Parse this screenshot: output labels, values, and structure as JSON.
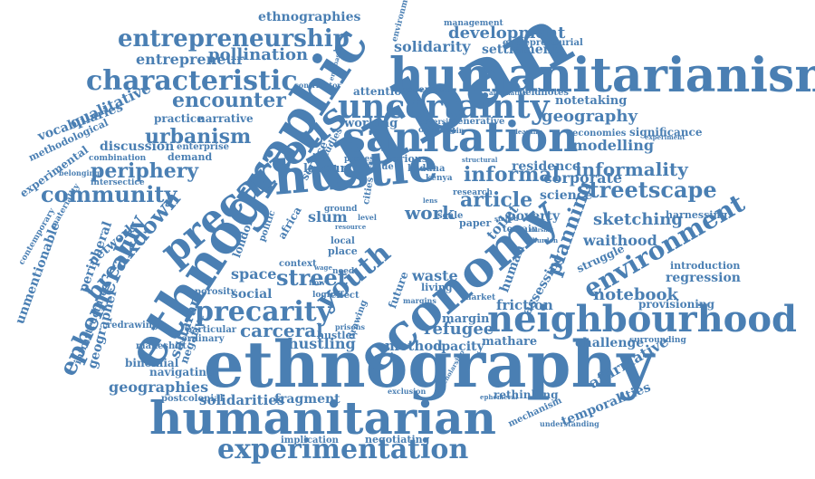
{
  "color": "#4a7fb3",
  "words": [
    "urban",
    "ethnography",
    "ethnographic",
    "humanitarianism",
    "hustle",
    "sanitation",
    "humanitarian",
    "economy",
    "neighbourhood",
    "uncertainty",
    "precarious",
    "characteristic",
    "entrepreneurship",
    "experimentation",
    "precarity",
    "community",
    "environment",
    "streetscape",
    "informality",
    "periphery",
    "breakdown",
    "ephemerality",
    "encounter",
    "youth",
    "street",
    "informal",
    "article",
    "work",
    "urbanism",
    "planning",
    "sketching",
    "carceral",
    "hustling",
    "notebook",
    "geographies",
    "solidarity",
    "development",
    "pollination",
    "entrepreneur",
    "vocabularies",
    "qualitative",
    "ethnographies",
    "geography",
    "modelling",
    "residence",
    "corporate",
    "science",
    "waithood",
    "regression",
    "provisioning",
    "friction",
    "refugee",
    "margin",
    "mathare",
    "method",
    "opacity",
    "challenge",
    "affirmative",
    "temporalities",
    "rethinking",
    "negotiating",
    "implication",
    "fragment",
    "solidarities",
    "postcolonial",
    "navigating",
    "binomial",
    "makeshift",
    "saharan",
    "geographer",
    "infrastructure",
    "peripheral",
    "unmentionable",
    "network",
    "space",
    "social",
    "slum",
    "waste",
    "poverty",
    "human",
    "labour",
    "discussion",
    "practice",
    "narrative",
    "notetaking",
    "significance",
    "economies",
    "harnessing",
    "introduction",
    "struggle",
    "settlement",
    "attention",
    "suspension",
    "fieldnotes",
    "working",
    "methodological",
    "experimental",
    "demand",
    "enterprise",
    "combination",
    "contributor",
    "mechanism",
    "understanding",
    "surrounding",
    "experiment",
    "management",
    "environmental",
    "entrepreneurial",
    "porosity",
    "particular",
    "ordinary",
    "negative",
    "redrawing",
    "contemporary",
    "materiality",
    "belonging",
    "intersectice",
    "kaduna",
    "kenya",
    "toilet",
    "paper",
    "assessing",
    "london",
    "africa",
    "context",
    "effect",
    "logic",
    "future",
    "scale",
    "need",
    "place",
    "politic",
    "local",
    "terrain",
    "research",
    "value",
    "process",
    "various",
    "service",
    "studies",
    "exclusion",
    "living",
    "market",
    "generative",
    "adversity",
    "opening",
    "uncertain",
    "emphasise",
    "alternative",
    "structural",
    "cleaning",
    "nursing",
    "burden",
    "stalled",
    "lens",
    "wage",
    "flow",
    "hustler",
    "ground",
    "cities",
    "level",
    "resource",
    "margins",
    "prisons",
    "drawing",
    "scholarship",
    "ephemeral"
  ]
}
